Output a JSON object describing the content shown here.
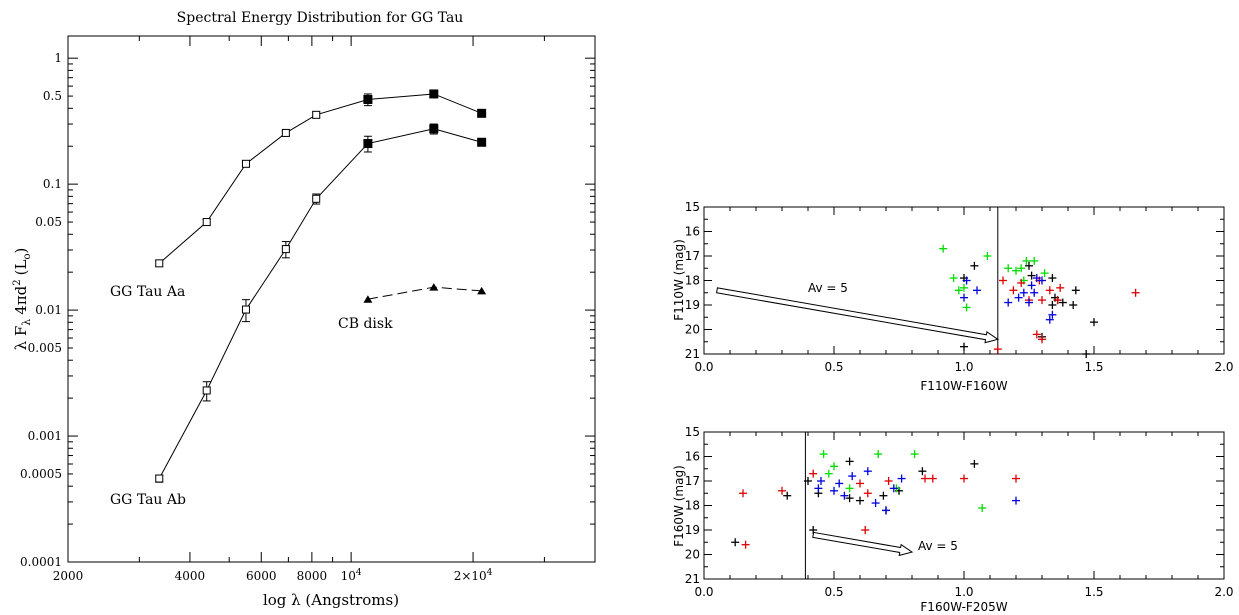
{
  "chart_data": [
    {
      "type": "line",
      "title": "Spectral Energy Distribution for GG Tau",
      "xlabel": "log λ (Angstroms)",
      "ylabel": "λ F",
      "ylabel_sub": "λ",
      "ylabel_tail": "4πd",
      "ylabel_sup": "2",
      "ylabel_unit": "(L",
      "ylabel_unit_sub": "o",
      "ylabel_close": ")",
      "x_scale": "log",
      "y_scale": "log",
      "xlim": [
        2000,
        40000
      ],
      "ylim": [
        0.0001,
        1.5
      ],
      "x_ticks": [
        {
          "value": 2000,
          "label": "2000"
        },
        {
          "value": 4000,
          "label": "4000"
        },
        {
          "value": 6000,
          "label": "6000"
        },
        {
          "value": 8000,
          "label": "8000"
        },
        {
          "value": 10000,
          "label": "10",
          "sup": "4"
        },
        {
          "value": 20000,
          "label": "2×10",
          "sup": "4"
        }
      ],
      "y_ticks": [
        {
          "value": 1,
          "label": "1"
        },
        {
          "value": 0.5,
          "label": "0.5"
        },
        {
          "value": 0.1,
          "label": "0.1"
        },
        {
          "value": 0.05,
          "label": "0.05"
        },
        {
          "value": 0.01,
          "label": "0.01"
        },
        {
          "value": 0.005,
          "label": "0.005"
        },
        {
          "value": 0.001,
          "label": "0.001"
        },
        {
          "value": 0.0005,
          "label": "0.0005"
        },
        {
          "value": 0.0001,
          "label": "0.0001"
        }
      ],
      "series": [
        {
          "name": "GG Tau Aa",
          "style": "solid",
          "points": [
            {
              "x": 3360,
              "y": 0.0235,
              "err": 0.0012,
              "marker": "open-square"
            },
            {
              "x": 4400,
              "y": 0.05,
              "err": 0.0025,
              "marker": "open-square"
            },
            {
              "x": 5500,
              "y": 0.145,
              "err": 0.008,
              "marker": "open-square"
            },
            {
              "x": 6900,
              "y": 0.255,
              "err": 0.012,
              "marker": "open-square"
            },
            {
              "x": 8200,
              "y": 0.355,
              "err": 0.018,
              "marker": "open-square"
            },
            {
              "x": 11000,
              "y": 0.47,
              "err": 0.05,
              "marker": "filled-square"
            },
            {
              "x": 16000,
              "y": 0.52,
              "err": 0.03,
              "marker": "filled-square"
            },
            {
              "x": 21000,
              "y": 0.365,
              "err": 0.015,
              "marker": "filled-square"
            }
          ]
        },
        {
          "name": "GG Tau Ab",
          "style": "solid",
          "points": [
            {
              "x": 3360,
              "y": 0.00046,
              "err": 3e-05,
              "marker": "open-square"
            },
            {
              "x": 4400,
              "y": 0.0023,
              "err": 0.0004,
              "marker": "open-square"
            },
            {
              "x": 5500,
              "y": 0.0101,
              "err": 0.002,
              "marker": "open-square"
            },
            {
              "x": 6900,
              "y": 0.0305,
              "err": 0.0045,
              "marker": "open-square"
            },
            {
              "x": 8200,
              "y": 0.0765,
              "err": 0.007,
              "marker": "open-square"
            },
            {
              "x": 11000,
              "y": 0.21,
              "err": 0.03,
              "marker": "filled-square"
            },
            {
              "x": 16000,
              "y": 0.275,
              "err": 0.025,
              "marker": "filled-square"
            },
            {
              "x": 21000,
              "y": 0.215,
              "err": 0.01,
              "marker": "filled-square"
            }
          ]
        },
        {
          "name": "CB disk",
          "style": "dashed",
          "points": [
            {
              "x": 11000,
              "y": 0.0122,
              "marker": "filled-triangle"
            },
            {
              "x": 16000,
              "y": 0.0152,
              "marker": "filled-triangle"
            },
            {
              "x": 21000,
              "y": 0.0142,
              "marker": "filled-triangle"
            }
          ]
        }
      ]
    },
    {
      "type": "scatter",
      "xlabel": "F110W-F160W",
      "ylabel": "F110W (mag)",
      "xlim": [
        0.0,
        2.0
      ],
      "ylim": [
        21,
        15
      ],
      "x_ticks": [
        "0.0",
        "0.5",
        "1.0",
        "1.5",
        "2.0"
      ],
      "y_ticks": [
        "15",
        "16",
        "17",
        "18",
        "19",
        "20",
        "21"
      ],
      "vline_x": 1.13,
      "reddening": {
        "label": "Av = 5",
        "from": [
          0.05,
          18.4
        ],
        "to": [
          1.13,
          20.4
        ]
      },
      "series": [
        {
          "color": "#000000",
          "points": [
            [
              1.0,
              17.9
            ],
            [
              1.04,
              17.4
            ],
            [
              1.25,
              17.4
            ],
            [
              1.26,
              17.8
            ],
            [
              1.34,
              17.9
            ],
            [
              1.35,
              18.7
            ],
            [
              1.36,
              18.8
            ],
            [
              1.38,
              18.9
            ],
            [
              1.42,
              19.0
            ],
            [
              1.43,
              18.4
            ],
            [
              1.5,
              19.7
            ],
            [
              1.47,
              21.0
            ],
            [
              1.3,
              20.3
            ],
            [
              1.0,
              20.7
            ],
            [
              1.34,
              19.0
            ]
          ]
        },
        {
          "color": "#00dd00",
          "points": [
            [
              0.92,
              16.7
            ],
            [
              0.96,
              17.9
            ],
            [
              0.98,
              18.4
            ],
            [
              1.0,
              18.3
            ],
            [
              1.01,
              19.1
            ],
            [
              1.09,
              17.0
            ],
            [
              1.17,
              17.5
            ],
            [
              1.2,
              17.6
            ],
            [
              1.22,
              17.5
            ],
            [
              1.24,
              17.2
            ],
            [
              1.27,
              17.2
            ],
            [
              1.31,
              17.7
            ],
            [
              1.23,
              18.0
            ]
          ]
        },
        {
          "color": "#dd0000",
          "points": [
            [
              1.13,
              20.8
            ],
            [
              1.15,
              18.0
            ],
            [
              1.19,
              18.4
            ],
            [
              1.22,
              18.1
            ],
            [
              1.25,
              18.8
            ],
            [
              1.29,
              18.0
            ],
            [
              1.3,
              18.8
            ],
            [
              1.33,
              18.4
            ],
            [
              1.36,
              18.8
            ],
            [
              1.37,
              18.3
            ],
            [
              1.28,
              20.2
            ],
            [
              1.3,
              20.4
            ],
            [
              1.66,
              18.5
            ]
          ]
        },
        {
          "color": "#0000dd",
          "points": [
            [
              1.0,
              18.7
            ],
            [
              1.01,
              18.0
            ],
            [
              1.05,
              18.4
            ],
            [
              1.17,
              18.9
            ],
            [
              1.21,
              18.7
            ],
            [
              1.23,
              18.5
            ],
            [
              1.25,
              18.9
            ],
            [
              1.26,
              18.2
            ],
            [
              1.27,
              18.5
            ],
            [
              1.3,
              18.0
            ],
            [
              1.33,
              19.6
            ],
            [
              1.34,
              19.4
            ],
            [
              1.28,
              17.9
            ]
          ]
        }
      ]
    },
    {
      "type": "scatter",
      "xlabel": "F160W-F205W",
      "ylabel": "F160W (mag)",
      "xlim": [
        0.0,
        2.0
      ],
      "ylim": [
        21,
        15
      ],
      "x_ticks": [
        "0.0",
        "0.5",
        "1.0",
        "1.5",
        "2.0"
      ],
      "y_ticks": [
        "15",
        "16",
        "17",
        "18",
        "19",
        "20",
        "21"
      ],
      "vline_x": 0.39,
      "reddening": {
        "label": "Av = 5",
        "from": [
          0.42,
          19.2
        ],
        "to": [
          0.8,
          19.9
        ]
      },
      "series": [
        {
          "color": "#000000",
          "points": [
            [
              0.12,
              19.5
            ],
            [
              0.32,
              17.6
            ],
            [
              0.4,
              17.0
            ],
            [
              0.42,
              19.0
            ],
            [
              0.44,
              17.5
            ],
            [
              0.56,
              16.2
            ],
            [
              0.56,
              17.7
            ],
            [
              0.6,
              17.8
            ],
            [
              0.69,
              17.6
            ],
            [
              0.7,
              18.2
            ],
            [
              0.75,
              17.4
            ],
            [
              0.84,
              16.6
            ],
            [
              1.04,
              16.3
            ]
          ]
        },
        {
          "color": "#00dd00",
          "points": [
            [
              0.46,
              15.9
            ],
            [
              0.48,
              16.7
            ],
            [
              0.5,
              16.4
            ],
            [
              0.56,
              17.3
            ],
            [
              0.67,
              15.9
            ],
            [
              0.74,
              17.3
            ],
            [
              0.81,
              15.9
            ],
            [
              1.07,
              18.1
            ]
          ]
        },
        {
          "color": "#dd0000",
          "points": [
            [
              0.15,
              17.5
            ],
            [
              0.16,
              19.6
            ],
            [
              0.3,
              17.4
            ],
            [
              0.42,
              16.7
            ],
            [
              0.6,
              17.1
            ],
            [
              0.62,
              19.0
            ],
            [
              0.63,
              17.5
            ],
            [
              0.71,
              17.0
            ],
            [
              0.85,
              16.9
            ],
            [
              0.88,
              16.9
            ],
            [
              1.0,
              16.9
            ],
            [
              1.2,
              16.9
            ]
          ]
        },
        {
          "color": "#0000dd",
          "points": [
            [
              0.44,
              17.3
            ],
            [
              0.45,
              17.0
            ],
            [
              0.5,
              17.4
            ],
            [
              0.52,
              17.1
            ],
            [
              0.54,
              17.6
            ],
            [
              0.57,
              16.8
            ],
            [
              0.63,
              16.6
            ],
            [
              0.66,
              17.9
            ],
            [
              0.7,
              18.2
            ],
            [
              0.73,
              17.3
            ],
            [
              0.76,
              16.9
            ],
            [
              1.2,
              17.8
            ]
          ]
        }
      ]
    }
  ]
}
